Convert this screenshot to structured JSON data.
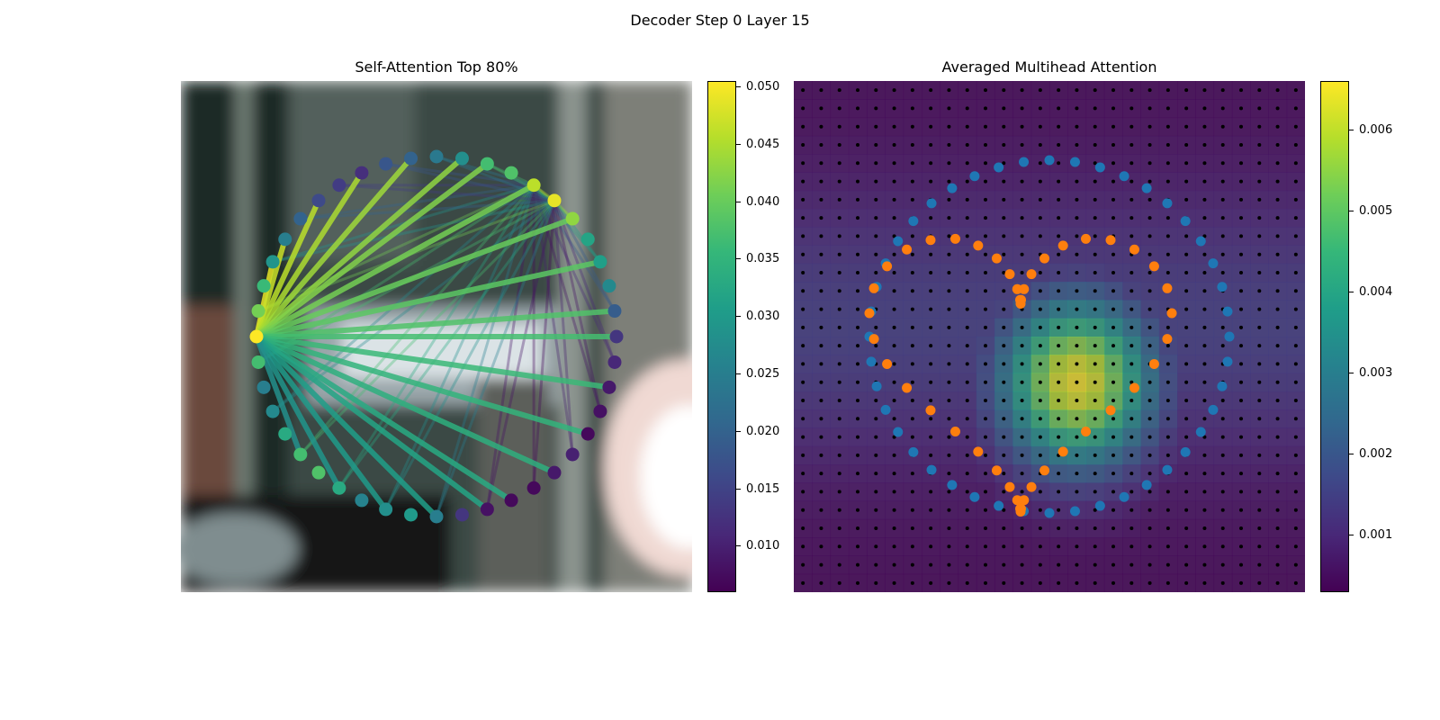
{
  "figure": {
    "suptitle": "Decoder Step 0 Layer 15"
  },
  "chart_data": [
    {
      "type": "scatter",
      "title": "Self-Attention Top 80%",
      "description_type": "attention-graph over image",
      "nodes": {
        "count": 44,
        "values": [
          0.037,
          0.038,
          0.046,
          0.049,
          0.043,
          0.032,
          0.031,
          0.027,
          0.019,
          0.013,
          0.011,
          0.009,
          0.008,
          0.007,
          0.01,
          0.009,
          0.007,
          0.007,
          0.008,
          0.013,
          0.025,
          0.03,
          0.028,
          0.026,
          0.033,
          0.038,
          0.037,
          0.033,
          0.027,
          0.025,
          0.037,
          0.051,
          0.041,
          0.036,
          0.029,
          0.025,
          0.02,
          0.016,
          0.014,
          0.012,
          0.018,
          0.02,
          0.024,
          0.028
        ]
      },
      "source_node": 31,
      "edge_weights": [
        0.049,
        0.047,
        0.046,
        0.045,
        0.044,
        0.043,
        0.042,
        0.041,
        0.04,
        0.039,
        0.038,
        0.037,
        0.036,
        0.035,
        0.034,
        0.033,
        0.032,
        0.031,
        0.03,
        0.029,
        0.028
      ],
      "colorbar": {
        "min": 0.006,
        "max": 0.0505,
        "ticks": [
          "0.010",
          "0.015",
          "0.020",
          "0.025",
          "0.030",
          "0.035",
          "0.040",
          "0.045",
          "0.050"
        ]
      },
      "colormap": "viridis"
    },
    {
      "type": "heatmap",
      "title": "Averaged Multihead Attention",
      "grid": {
        "rows": 28,
        "cols": 28
      },
      "hotspot": {
        "row": 16,
        "col": 15,
        "value": 0.0065
      },
      "colorbar": {
        "min": 0.0003,
        "max": 0.0066,
        "ticks": [
          "0.001",
          "0.002",
          "0.003",
          "0.004",
          "0.005",
          "0.006"
        ]
      },
      "colormap": "viridis",
      "series": [
        {
          "color": "#1f77b4",
          "count": 44
        },
        {
          "color": "#ff7f0e",
          "count": 44
        },
        {
          "color": "#000000",
          "count": 784
        }
      ]
    }
  ]
}
